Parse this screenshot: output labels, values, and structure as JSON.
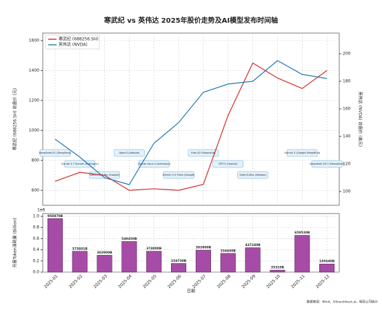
{
  "chart_data": [
    {
      "type": "line",
      "title": "寒武纪 vs 英伟达 2025年股价走势及AI模型发布时间轴",
      "ylabel": "寒武纪 (688256.SH) 收盘价 (元)",
      "y2label": "英伟达 (NVDA) 收盘价 (美元)",
      "categories": [
        "2025-01",
        "2025-02",
        "2025-03",
        "2025-04",
        "2025-05",
        "2025-06",
        "2025-07",
        "2025-08",
        "2025-09",
        "2025-10",
        "2025-11",
        "2025-12"
      ],
      "series": [
        {
          "name": "寒武纪 (688256.SH)",
          "color": "#d62728",
          "values": [
            660,
            720,
            700,
            600,
            610,
            600,
            640,
            1100,
            1450,
            1350,
            1280,
            1400
          ]
        },
        {
          "name": "英伟达 (NVDA)",
          "color": "#1f77b4",
          "axis": "y2",
          "values": [
            138,
            125,
            110,
            105,
            135,
            150,
            172,
            178,
            180,
            195,
            185,
            182
          ]
        }
      ],
      "ylim": [
        500,
        1650
      ],
      "yticks": [
        600,
        800,
        1000,
        1200,
        1400,
        1600
      ],
      "y2lim": [
        90,
        215
      ],
      "y2ticks": [
        100,
        120,
        140,
        160,
        180,
        200
      ],
      "grid": true,
      "legend": "upper left",
      "annotations": [
        {
          "text": "DeepSeek-R1 (DeepSeek)",
          "x": 0
        },
        {
          "text": "Claude 3.7 Sonnet (Anthropic)",
          "x": 1
        },
        {
          "text": "Gemini 2.5 Pro (Google)",
          "x": 2
        },
        {
          "text": "Qwen3 (Alibaba)",
          "x": 3
        },
        {
          "text": "Claude Opus 4 (Anthropic)",
          "x": 4
        },
        {
          "text": "Gemini 2.5 Flash (Google)",
          "x": 5
        },
        {
          "text": "Kimi K2 (Moonshot)",
          "x": 6
        },
        {
          "text": "GPT-5 (OpenAI)",
          "x": 7
        },
        {
          "text": "Qwen3-Max (Alibaba)",
          "x": 8
        },
        {
          "text": "Gemini 3 (Google DeepMind)",
          "x": 10
        },
        {
          "text": "DeepSeek-V3.2 (DeepSeek)",
          "x": 11
        }
      ]
    },
    {
      "type": "bar",
      "ylabel": "月度Token消耗量 (Billion)",
      "xlabel": "日期",
      "y_offset_label": "1e6",
      "categories": [
        "2025-01",
        "2025-02",
        "2025-03",
        "2025-04",
        "2025-05",
        "2025-06",
        "2025-07",
        "2025-08",
        "2025-09",
        "2025-10",
        "2025-11",
        "2025-12"
      ],
      "values": [
        958870,
        373601,
        302900,
        549450,
        374000,
        154730,
        393800,
        334690,
        437240,
        35310,
        659530,
        145640
      ],
      "value_labels": [
        "958870B",
        "373601B",
        "302900B",
        "549450B",
        "374000B",
        "154730B",
        "393800B",
        "334690B",
        "437240B",
        "35310B",
        "659530B",
        "145640B"
      ],
      "color": "#a64ca6",
      "ylim": [
        0,
        1050000
      ],
      "yticks": [
        {
          "value": 0,
          "label": "0.0"
        },
        {
          "value": 200000,
          "label": "0.2"
        },
        {
          "value": 400000,
          "label": "0.4"
        },
        {
          "value": 600000,
          "label": "0.6"
        },
        {
          "value": 800000,
          "label": "0.8"
        },
        {
          "value": 1000000,
          "label": "1.0"
        }
      ],
      "grid": true,
      "source": "数据来源：Wind，Ultrarchitect.ai，明亮公司统计"
    }
  ]
}
